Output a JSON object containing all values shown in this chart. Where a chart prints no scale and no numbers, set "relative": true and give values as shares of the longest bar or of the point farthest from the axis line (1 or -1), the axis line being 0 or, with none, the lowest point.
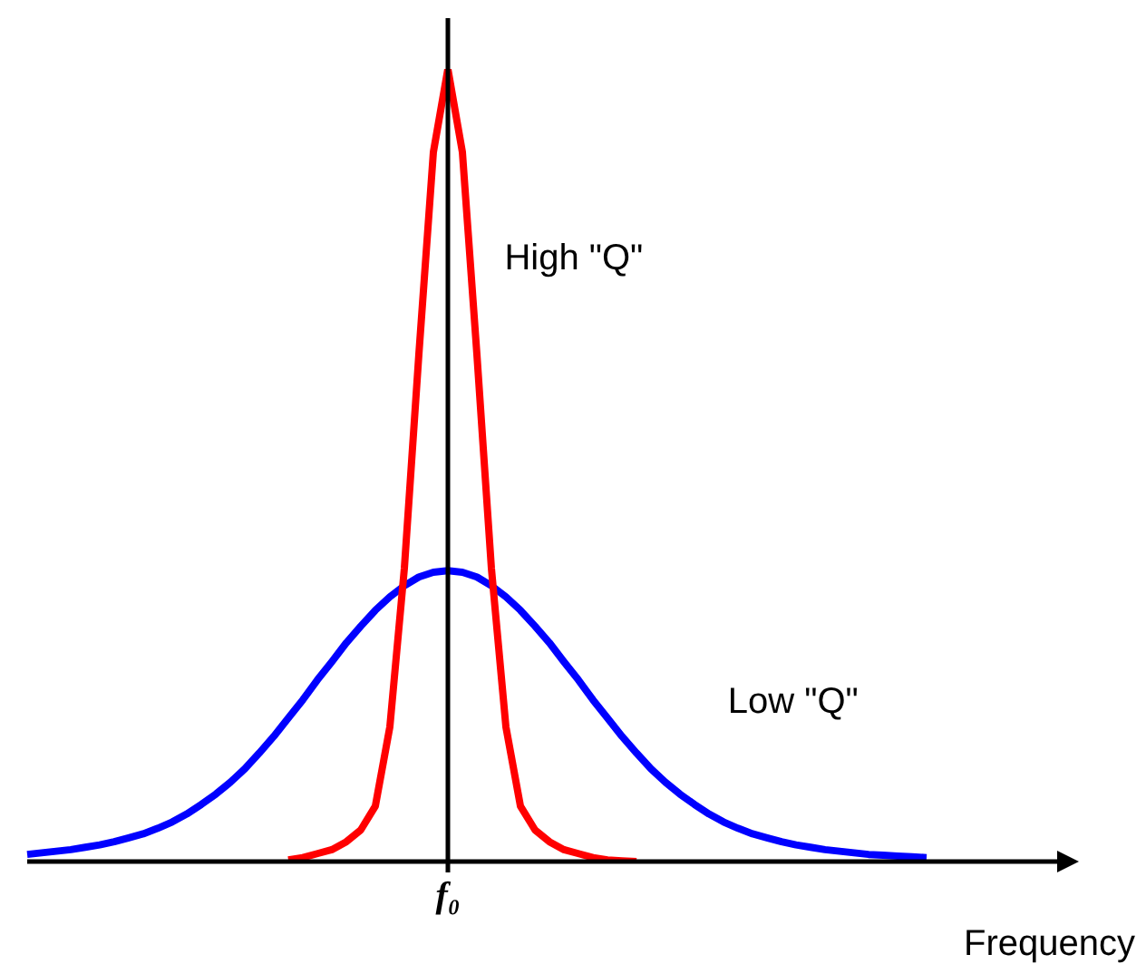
{
  "chart_data": {
    "type": "line",
    "relative": true,
    "xlabel": "Frequency",
    "legend": false,
    "grid": false,
    "annotations": [
      "f₀"
    ],
    "categories": [
      null,
      null,
      null,
      null,
      null,
      null,
      null,
      null,
      null,
      null,
      null,
      null,
      null,
      null,
      null,
      null,
      null,
      null,
      null,
      null,
      null,
      null,
      null,
      null,
      null,
      null,
      null,
      null,
      null,
      null,
      null,
      null,
      null,
      null,
      null,
      null,
      null,
      null,
      null,
      null,
      null,
      null,
      null,
      null,
      null,
      null,
      null,
      null,
      null,
      null,
      null,
      null,
      null,
      null,
      null,
      null,
      null,
      null,
      null,
      null,
      null,
      null,
      null,
      null,
      null,
      null,
      null,
      null,
      null,
      null,
      null
    ],
    "series": [
      {
        "name": "High \"Q\"",
        "color": "#ff0000",
        "values": [
          null,
          null,
          null,
          null,
          null,
          null,
          null,
          null,
          null,
          null,
          null,
          null,
          null,
          null,
          null,
          null,
          null,
          null,
          0.002,
          0.005,
          0.01,
          0.015,
          0.025,
          0.04,
          0.07,
          0.17,
          0.37,
          0.64,
          0.895,
          1,
          0.895,
          0.64,
          0.37,
          0.17,
          0.07,
          0.04,
          0.025,
          0.015,
          0.01,
          0.005,
          0.002,
          0.001,
          0,
          null,
          null,
          null,
          null,
          null,
          null,
          null,
          null,
          null,
          null,
          null,
          null,
          null,
          null,
          null,
          null,
          null,
          null,
          null,
          null,
          null,
          null,
          null,
          null,
          null,
          null,
          null,
          null
        ]
      },
      {
        "name": "Low \"Q\"",
        "color": "#0000ff",
        "values": [
          0.009,
          0.011,
          0.013,
          0.015,
          0.018,
          0.021,
          0.025,
          0.03,
          0.035,
          0.042,
          0.05,
          0.06,
          0.072,
          0.085,
          0.1,
          0.117,
          0.137,
          0.158,
          0.181,
          0.204,
          0.229,
          0.252,
          0.276,
          0.297,
          0.317,
          0.334,
          0.348,
          0.359,
          0.365,
          0.367,
          0.365,
          0.359,
          0.348,
          0.334,
          0.317,
          0.297,
          0.276,
          0.252,
          0.229,
          0.204,
          0.181,
          0.158,
          0.137,
          0.117,
          0.1,
          0.085,
          0.072,
          0.06,
          0.05,
          0.042,
          0.035,
          0.03,
          0.025,
          0.021,
          0.018,
          0.015,
          0.013,
          0.011,
          0.009,
          0.008,
          0.007,
          0.006,
          0.005,
          null,
          null,
          null,
          null,
          null,
          null,
          null,
          null
        ]
      }
    ]
  }
}
